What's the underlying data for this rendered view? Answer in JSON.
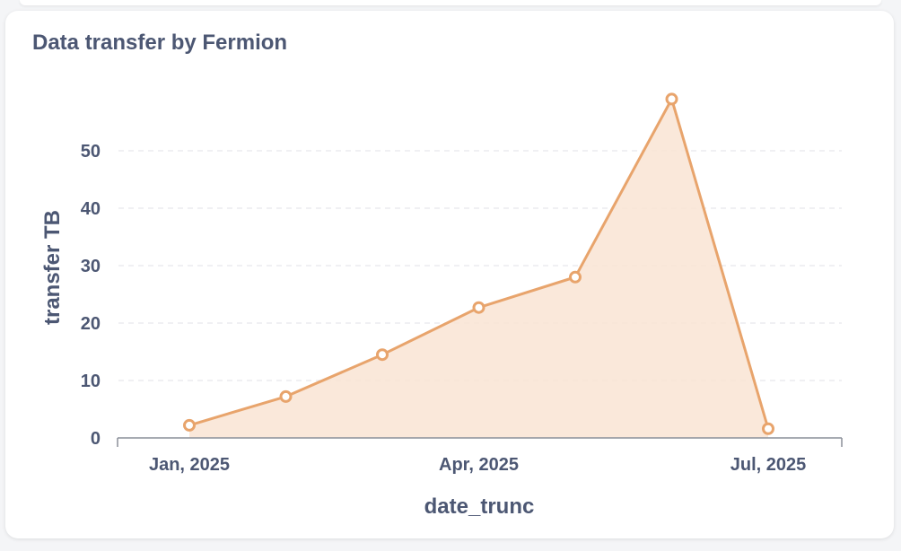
{
  "card": {
    "title": "Data transfer by Fermion"
  },
  "colors": {
    "series": "#e8a46c",
    "area": "#f9e4d3",
    "grid": "#e6e8ec",
    "axis": "#8a8f99",
    "text": "#4c5773"
  },
  "chart_data": {
    "type": "area",
    "title": "Data transfer by Fermion",
    "xlabel": "date_trunc",
    "ylabel": "transfer TB",
    "x": [
      "2025-01",
      "2025-02",
      "2025-03",
      "2025-04",
      "2025-05",
      "2025-06",
      "2025-07"
    ],
    "x_tick_labels": [
      {
        "x": "2025-01",
        "label": "Jan, 2025"
      },
      {
        "x": "2025-04",
        "label": "Apr, 2025"
      },
      {
        "x": "2025-07",
        "label": "Jul, 2025"
      }
    ],
    "series": [
      {
        "values": [
          2.2,
          7.2,
          14.5,
          22.7,
          28.0,
          59.0,
          1.6
        ]
      }
    ],
    "ylim": [
      0,
      60
    ],
    "yticks": [
      0,
      10,
      20,
      30,
      40,
      50
    ],
    "grid": true,
    "legend": "none"
  }
}
